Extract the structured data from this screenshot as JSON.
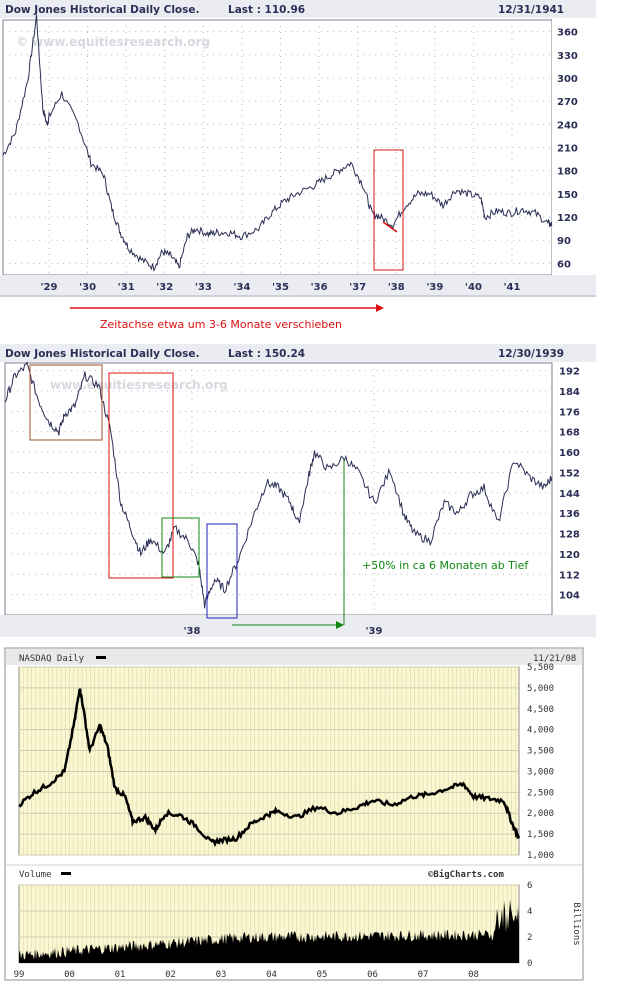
{
  "chart_data": [
    {
      "type": "line",
      "title": "Dow Jones Historical Daily Close.",
      "last_label": "Last : 110.96",
      "date_label": "12/31/1941",
      "watermark": "© www.equitiesresearch.org",
      "x_ticks": [
        "'29",
        "'30",
        "'31",
        "'32",
        "'33",
        "'34",
        "'35",
        "'36",
        "'37",
        "'38",
        "'39",
        "'40",
        "'41"
      ],
      "y_ticks": [
        60,
        90,
        120,
        150,
        180,
        210,
        240,
        270,
        300,
        330,
        360
      ],
      "ylim": [
        45,
        375
      ],
      "xlim": [
        1928.9,
        1942.0
      ],
      "grid": true,
      "series": [
        {
          "x": [
            1928.9,
            1929.2,
            1929.5,
            1929.7,
            1929.85,
            1929.95,
            1930.0,
            1930.3,
            1930.7,
            1931.0,
            1931.3,
            1931.5,
            1931.7,
            1931.9,
            1932.2,
            1932.5,
            1932.7,
            1932.9,
            1933.1,
            1933.3,
            1933.5,
            1933.8,
            1934.0,
            1934.3,
            1934.6,
            1935.0,
            1935.3,
            1935.6,
            1935.9,
            1936.3,
            1936.6,
            1936.9,
            1937.2,
            1937.5,
            1937.7,
            1937.9,
            1938.2,
            1938.5,
            1938.8,
            1939.1,
            1939.4,
            1939.7,
            1940.0,
            1940.3,
            1940.4,
            1940.7,
            1941.0,
            1941.3,
            1941.6,
            1941.9,
            1942.0
          ],
          "y": [
            200,
            230,
            300,
            380,
            260,
            240,
            250,
            280,
            240,
            190,
            175,
            130,
            100,
            80,
            65,
            55,
            75,
            70,
            55,
            95,
            105,
            98,
            100,
            100,
            95,
            105,
            125,
            140,
            150,
            160,
            170,
            180,
            190,
            160,
            125,
            120,
            110,
            135,
            150,
            150,
            135,
            155,
            150,
            145,
            120,
            128,
            125,
            130,
            125,
            112,
            110
          ]
        }
      ],
      "annotation": "Zeitachse etwa um 3-6 Monate verschieben"
    },
    {
      "type": "line",
      "title": "Dow Jones Historical Daily Close.",
      "last_label": "Last : 150.24",
      "date_label": "12/30/1939",
      "watermark": "www.equitiesresearch.org",
      "x_ticks": [
        "'38",
        "'39"
      ],
      "y_ticks": [
        104,
        112,
        120,
        128,
        136,
        144,
        152,
        160,
        168,
        176,
        184,
        192
      ],
      "ylim": [
        96,
        195
      ],
      "xlim": [
        1937.25,
        1939.99
      ],
      "grid": true,
      "series": [
        {
          "x": [
            1937.25,
            1937.3,
            1937.36,
            1937.42,
            1937.47,
            1937.52,
            1937.55,
            1937.6,
            1937.65,
            1937.72,
            1937.78,
            1937.83,
            1937.88,
            1937.93,
            1937.98,
            1938.05,
            1938.1,
            1938.17,
            1938.22,
            1938.25,
            1938.3,
            1938.35,
            1938.42,
            1938.5,
            1938.56,
            1938.62,
            1938.68,
            1938.72,
            1938.77,
            1938.8,
            1938.87,
            1938.95,
            1939.02,
            1939.1,
            1939.18,
            1939.25,
            1939.3,
            1939.38,
            1939.45,
            1939.52,
            1939.58,
            1939.65,
            1939.72,
            1939.8,
            1939.88,
            1939.95,
            1939.99
          ],
          "y": [
            180,
            190,
            194,
            180,
            172,
            168,
            175,
            178,
            190,
            186,
            168,
            140,
            130,
            120,
            126,
            120,
            130,
            125,
            116,
            100,
            110,
            106,
            118,
            136,
            148,
            146,
            140,
            132,
            150,
            160,
            153,
            158,
            152,
            140,
            153,
            135,
            128,
            125,
            140,
            136,
            143,
            146,
            132,
            157,
            150,
            146,
            150
          ]
        }
      ],
      "annotation": "+50% in ca 6 Monaten ab Tief"
    },
    {
      "type": "line",
      "title": "NASDAQ Daily",
      "date_label": "11/21/08",
      "x_ticks": [
        "99",
        "00",
        "01",
        "02",
        "03",
        "04",
        "05",
        "06",
        "07",
        "08"
      ],
      "y_ticks": [
        "1,000",
        "1,500",
        "2,000",
        "2,500",
        "3,000",
        "3,500",
        "4,000",
        "4,500",
        "5,000",
        "5,500"
      ],
      "ylim": [
        1000,
        5500
      ],
      "xlim": [
        1999.0,
        2008.9
      ],
      "grid": true,
      "series": [
        {
          "x": [
            1999.0,
            1999.3,
            1999.6,
            1999.9,
            2000.1,
            2000.2,
            2000.25,
            2000.4,
            2000.6,
            2000.75,
            2000.9,
            2001.1,
            2001.25,
            2001.5,
            2001.7,
            2001.9,
            2002.2,
            2002.5,
            2002.8,
            2003.0,
            2003.3,
            2003.6,
            2003.9,
            2004.1,
            2004.5,
            2004.9,
            2005.3,
            2005.7,
            2006.0,
            2006.4,
            2006.8,
            2007.1,
            2007.5,
            2007.8,
            2008.0,
            2008.3,
            2008.6,
            2008.75,
            2008.9
          ],
          "y": [
            2200,
            2500,
            2700,
            3000,
            4200,
            5000,
            4700,
            3500,
            4100,
            3600,
            2600,
            2400,
            1800,
            1900,
            1600,
            2000,
            1950,
            1700,
            1300,
            1350,
            1400,
            1750,
            1950,
            2050,
            1900,
            2150,
            2000,
            2150,
            2300,
            2200,
            2400,
            2450,
            2600,
            2700,
            2400,
            2350,
            2300,
            1800,
            1400
          ]
        }
      ]
    },
    {
      "type": "bar",
      "title": "Volume",
      "credit": "©BigCharts.com",
      "ylabel": "Billions",
      "y_ticks": [
        "0",
        "2",
        "4",
        "6"
      ],
      "ylim": [
        0,
        6
      ],
      "grid": true
    }
  ],
  "colors": {
    "header_bg": "#ebebf2",
    "header_text": "#2b2f55",
    "dow_line": "#2b2f55",
    "nasdaq_bg": "#fbf8d0",
    "nasdaq_line": "#000000",
    "annotation_red": "#dd1111",
    "annotation_green": "#118811",
    "box_brown": "#a0522d",
    "box_red": "#dd1111",
    "box_green": "#118811",
    "box_blue": "#2222bb"
  }
}
